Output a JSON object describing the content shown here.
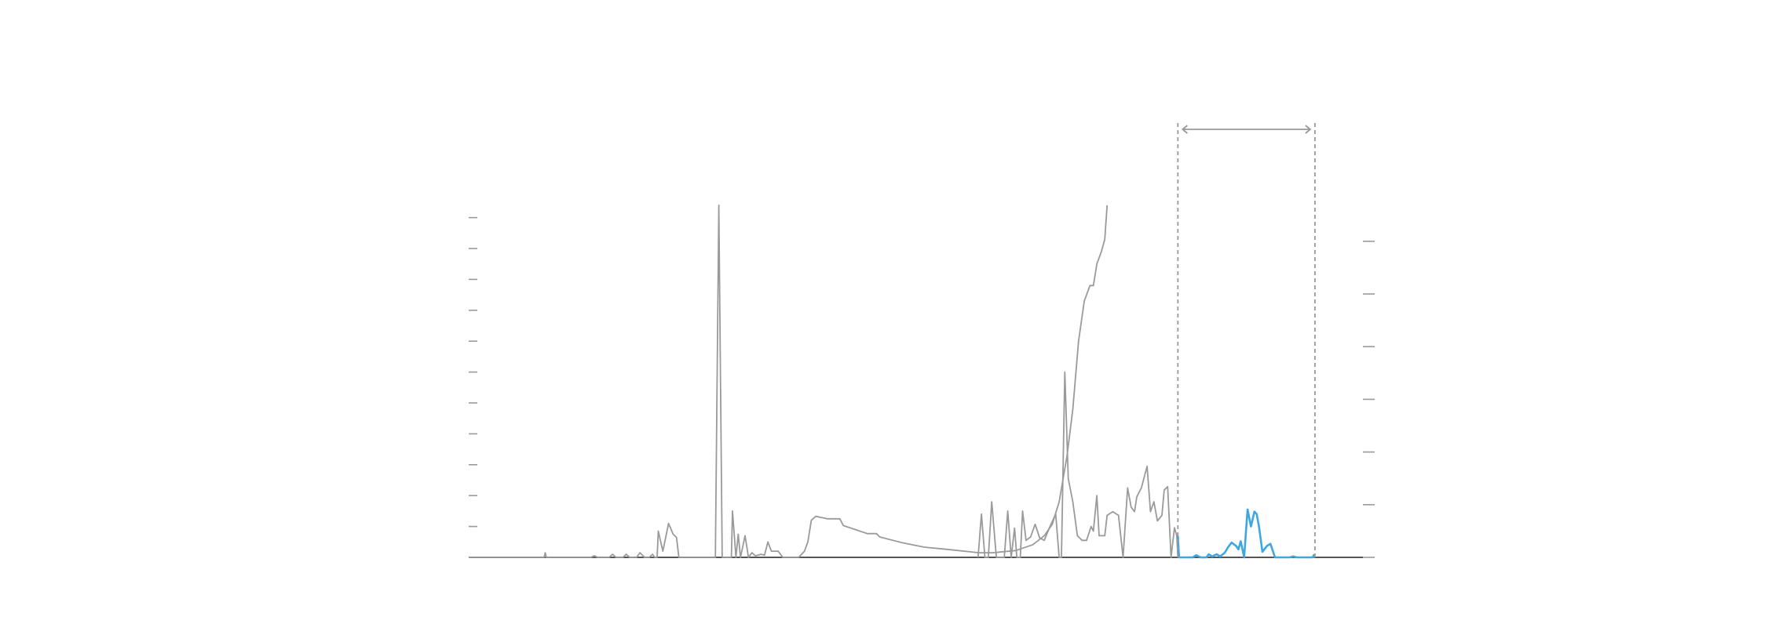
{
  "chart_data": {
    "type": "line",
    "title": "",
    "xlabel": "",
    "ylabel": "",
    "xlim": [
      0,
      783
    ],
    "ylim": [
      0,
      11.4
    ],
    "left_axis_ticks": [
      0,
      1,
      2,
      3,
      4,
      5,
      6,
      7,
      8,
      9,
      10,
      11
    ],
    "right_axis_ticks": [
      0,
      1,
      2,
      3,
      4,
      5,
      6
    ],
    "grid": false,
    "highlight_window": {
      "x_start": 621,
      "x_end": 741,
      "style": "dashed bracket with double arrow"
    },
    "colors": {
      "gray_series": "#9a9a9a",
      "highlight_series": "#3ea6e0",
      "axis": "#555555",
      "tick": "#9a9a9a"
    },
    "series": [
      {
        "color": "#9a9a9a",
        "points": [
          [
            0,
            0
          ],
          [
            66,
            0
          ],
          [
            67,
            0.15
          ],
          [
            68,
            0
          ],
          [
            107,
            0
          ],
          [
            110,
            0.05
          ],
          [
            113,
            0
          ],
          [
            123,
            0
          ],
          [
            126,
            0.1
          ],
          [
            129,
            0
          ],
          [
            135,
            0
          ],
          [
            138,
            0.1
          ],
          [
            141,
            0
          ],
          [
            147,
            0
          ],
          [
            150,
            0.15
          ],
          [
            154,
            0
          ],
          [
            158,
            0
          ],
          [
            161,
            0.1
          ],
          [
            163,
            0
          ],
          [
            165,
            0
          ],
          [
            166,
            0.85
          ],
          [
            170,
            0.2
          ],
          [
            175,
            1.1
          ],
          [
            179,
            0.75
          ],
          [
            182,
            0.65
          ],
          [
            184,
            0
          ],
          [
            216,
            0
          ],
          [
            219,
            11.4
          ],
          [
            222,
            0
          ],
          [
            230,
            0
          ],
          [
            231,
            1.5
          ],
          [
            234,
            0
          ],
          [
            236,
            0.75
          ],
          [
            238,
            0
          ],
          [
            242,
            0.7
          ],
          [
            245,
            0
          ],
          [
            248,
            0.15
          ],
          [
            251,
            0.05
          ],
          [
            256,
            0.1
          ],
          [
            259,
            0.07
          ],
          [
            262,
            0.5
          ],
          [
            265,
            0.2
          ],
          [
            271,
            0.2
          ],
          [
            275,
            0
          ],
          [
            289,
            0
          ]
        ]
      },
      {
        "color": "#9a9a9a",
        "points": [
          [
            446,
            0
          ],
          [
            449,
            1.4
          ],
          [
            452,
            0
          ],
          [
            455,
            0
          ],
          [
            458,
            1.8
          ],
          [
            462,
            0
          ],
          [
            469,
            0
          ],
          [
            472,
            1.5
          ],
          [
            475,
            0
          ],
          [
            478,
            0.95
          ],
          [
            480,
            0
          ],
          [
            483,
            0
          ],
          [
            485,
            1.5
          ],
          [
            488,
            0.55
          ],
          [
            492,
            0.66
          ],
          [
            496,
            1.07
          ],
          [
            500,
            0.63
          ],
          [
            504,
            0.55
          ],
          [
            509,
            1.0
          ],
          [
            514,
            1.4
          ],
          [
            517,
            0
          ],
          [
            519,
            0
          ],
          [
            522,
            6.0
          ],
          [
            525,
            2.55
          ],
          [
            529,
            1.8
          ],
          [
            533,
            0.7
          ],
          [
            537,
            0.55
          ],
          [
            541,
            0.55
          ],
          [
            545,
            1.0
          ],
          [
            547,
            0.85
          ],
          [
            550,
            2.0
          ],
          [
            552,
            0.7
          ],
          [
            557,
            0.7
          ],
          [
            559,
            1.36
          ],
          [
            564,
            1.48
          ],
          [
            569,
            1.36
          ],
          [
            573,
            0
          ],
          [
            577,
            2.25
          ],
          [
            580,
            1.63
          ],
          [
            583,
            1.48
          ],
          [
            585,
            1.96
          ],
          [
            589,
            2.25
          ],
          [
            594,
            2.95
          ],
          [
            597,
            1.48
          ],
          [
            600,
            1.8
          ],
          [
            603,
            1.18
          ],
          [
            607,
            1.36
          ],
          [
            609,
            2.18
          ],
          [
            612,
            2.29
          ],
          [
            615,
            0
          ],
          [
            618,
            0.96
          ],
          [
            620,
            0.7
          ],
          [
            621,
            0
          ]
        ]
      },
      {
        "color": "#9a9a9a",
        "points": [
          [
            289,
            0
          ],
          [
            294,
            0.2
          ],
          [
            297,
            0.5
          ],
          [
            300,
            1.2
          ],
          [
            304,
            1.33
          ],
          [
            314,
            1.25
          ],
          [
            325,
            1.25
          ],
          [
            328,
            1.03
          ],
          [
            349,
            0.77
          ],
          [
            357,
            0.77
          ],
          [
            360,
            0.66
          ],
          [
            379,
            0.48
          ],
          [
            399,
            0.33
          ],
          [
            419,
            0.26
          ],
          [
            439,
            0.18
          ],
          [
            447,
            0.15
          ],
          [
            459,
            0.15
          ],
          [
            479,
            0.22
          ],
          [
            494,
            0.41
          ],
          [
            504,
            0.7
          ],
          [
            511,
            1.07
          ],
          [
            517,
            1.8
          ],
          [
            524,
            3.3
          ],
          [
            529,
            4.8
          ],
          [
            534,
            7.0
          ],
          [
            539,
            8.3
          ],
          [
            544,
            8.8
          ],
          [
            547,
            8.8
          ],
          [
            550,
            9.5
          ],
          [
            554,
            9.9
          ],
          [
            557,
            10.3
          ],
          [
            559,
            11.4
          ]
        ]
      },
      {
        "color": "#3ea6e0",
        "points": [
          [
            621,
            0.7
          ],
          [
            622,
            0
          ],
          [
            634,
            0
          ],
          [
            637,
            0.07
          ],
          [
            641,
            0
          ],
          [
            646,
            0
          ],
          [
            648,
            0.1
          ],
          [
            651,
            0.03
          ],
          [
            655,
            0.1
          ],
          [
            658,
            0.03
          ],
          [
            662,
            0.15
          ],
          [
            665,
            0.33
          ],
          [
            668,
            0.48
          ],
          [
            672,
            0.37
          ],
          [
            674,
            0.26
          ],
          [
            676,
            0.52
          ],
          [
            679,
            0
          ],
          [
            682,
            1.55
          ],
          [
            685,
            1.0
          ],
          [
            688,
            1.48
          ],
          [
            690,
            1.4
          ],
          [
            692,
            1.0
          ],
          [
            695,
            0.18
          ],
          [
            699,
            0.37
          ],
          [
            702,
            0.44
          ],
          [
            706,
            0
          ],
          [
            719,
            0
          ],
          [
            722,
            0.03
          ],
          [
            725,
            0
          ],
          [
            739,
            0
          ],
          [
            740,
            0.07
          ],
          [
            741,
            0
          ]
        ]
      }
    ]
  }
}
